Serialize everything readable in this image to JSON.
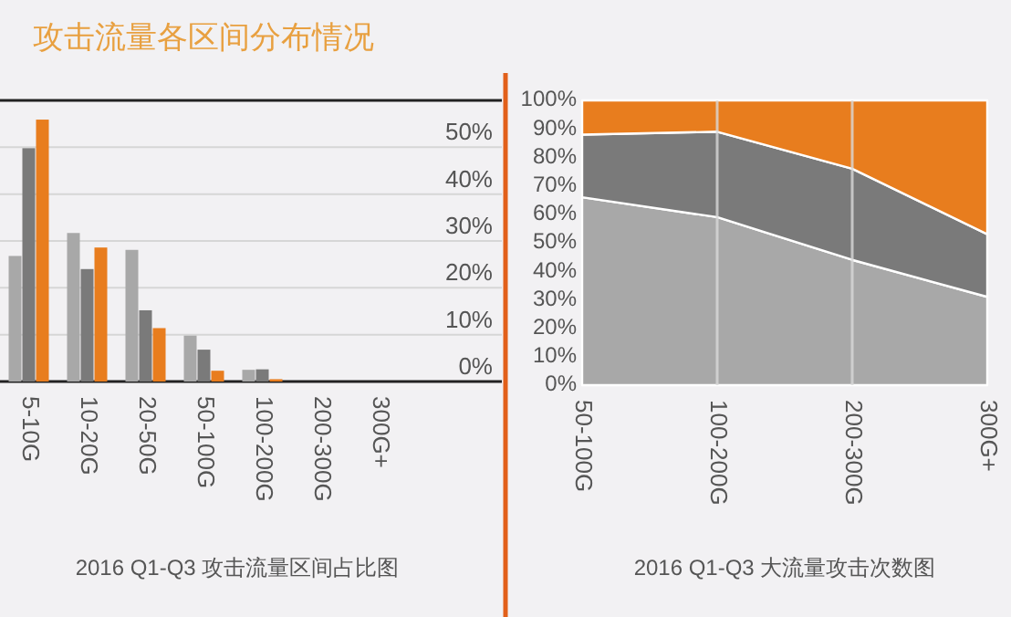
{
  "chart_data": [
    {
      "type": "bar",
      "title": "攻击流量各区间分布情况",
      "categories": [
        "5-10G",
        "10-20G",
        "20-50G",
        "50-100G",
        "100-200G",
        "200-300G",
        "300G+"
      ],
      "series": [
        {
          "color": "#a8a8a8",
          "values": [
            26.8,
            31.7,
            28.1,
            9.8,
            2.5,
            0,
            0
          ]
        },
        {
          "color": "#7a7a7a",
          "values": [
            49.8,
            24,
            15.2,
            6.8,
            2.6,
            0,
            0
          ]
        },
        {
          "color": "#e87d1e",
          "values": [
            55.9,
            28.6,
            11.4,
            2.3,
            0.5,
            0,
            0
          ]
        }
      ],
      "ylim": [
        0,
        60
      ],
      "yticks": [
        {
          "value": 0,
          "label": "0%"
        },
        {
          "value": 10,
          "label": "10%"
        },
        {
          "value": 20,
          "label": "20%"
        },
        {
          "value": 30,
          "label": "30%"
        },
        {
          "value": 40,
          "label": "40%"
        },
        {
          "value": 50,
          "label": "50%"
        }
      ],
      "grid": "y",
      "annotations": [
        "2016 Q1-Q3 攻击流量区间占比图"
      ]
    },
    {
      "type": "area",
      "stacked": true,
      "categories": [
        "50-100G",
        "100-200G",
        "200-300G",
        "300G+"
      ],
      "series": [
        {
          "color": "#a8a8a8",
          "values": [
            66,
            59,
            44,
            31
          ]
        },
        {
          "color": "#7a7a7a",
          "values": [
            22,
            30,
            32,
            22
          ]
        },
        {
          "color": "#e87d1e",
          "values": [
            12,
            11,
            24,
            47
          ]
        }
      ],
      "ylim": [
        0,
        100
      ],
      "yticks": [
        {
          "value": 0,
          "label": "0%"
        },
        {
          "value": 10,
          "label": "10%"
        },
        {
          "value": 20,
          "label": "20%"
        },
        {
          "value": 30,
          "label": "30%"
        },
        {
          "value": 40,
          "label": "40%"
        },
        {
          "value": 50,
          "label": "50%"
        },
        {
          "value": 60,
          "label": "60%"
        },
        {
          "value": 70,
          "label": "70%"
        },
        {
          "value": 80,
          "label": "80%"
        },
        {
          "value": 90,
          "label": "90%"
        },
        {
          "value": 100,
          "label": "100%"
        }
      ],
      "grid": "x",
      "annotations": [
        "2016 Q1-Q3 大流量攻击次数图"
      ]
    }
  ]
}
